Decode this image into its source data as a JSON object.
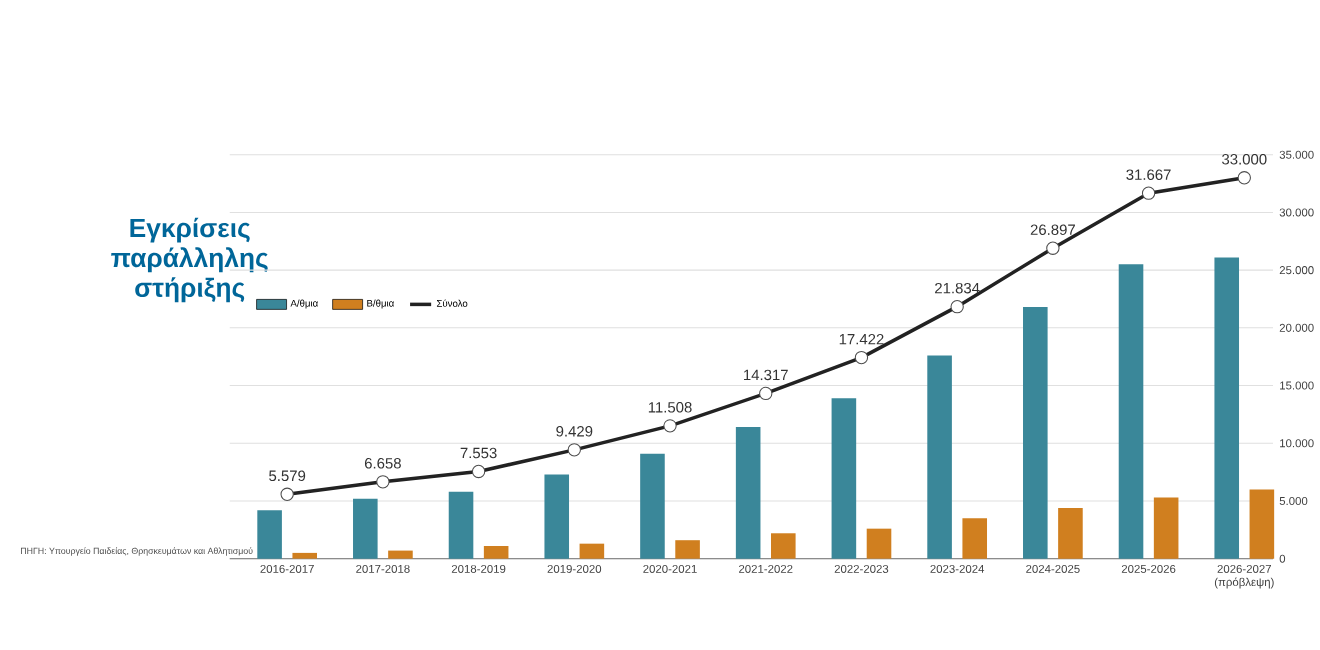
{
  "chart_data": {
    "type": "bar",
    "title": "Εγκρίσεις παράλληλης στήριξης",
    "categories": [
      "2016-2017",
      "2017-2018",
      "2018-2019",
      "2019-2020",
      "2020-2021",
      "2021-2022",
      "2022-2023",
      "2023-2024",
      "2024-2025",
      "2025-2026",
      "2026-2027 (πρόβλεψη)"
    ],
    "series": [
      {
        "name": "Α/θμια",
        "color": "#3a8799",
        "values": [
          4200,
          5200,
          5800,
          7300,
          9100,
          11400,
          13900,
          17600,
          21800,
          25500,
          26100
        ]
      },
      {
        "name": "Β/θμια",
        "color": "#d07f1f",
        "values": [
          500,
          700,
          1100,
          1300,
          1600,
          2200,
          2600,
          3500,
          4400,
          5300,
          6000
        ]
      },
      {
        "name": "Σύνολο",
        "type": "line",
        "color": "#222222",
        "marker": "circle",
        "values": [
          5579,
          6658,
          7553,
          9429,
          11508,
          14317,
          17422,
          21834,
          26897,
          31667,
          33000
        ],
        "value_labels": [
          "5.579",
          "6.658",
          "7.553",
          "9.429",
          "11.508",
          "14.317",
          "17.422",
          "21.834",
          "26.897",
          "31.667",
          "33.000"
        ]
      }
    ],
    "ylim": [
      0,
      35000
    ],
    "yticks": [
      0,
      {
        "value": 5000,
        "label": "5.000"
      },
      {
        "value": 10000,
        "label": "10.000"
      },
      {
        "value": 15000,
        "label": "15.000"
      },
      {
        "value": 20000,
        "label": "20.000"
      },
      {
        "value": 25000,
        "label": "25.000"
      },
      {
        "value": 30000,
        "label": "30.000"
      },
      {
        "value": 35000,
        "label": "35.000"
      }
    ],
    "grid": "y",
    "legend": "top left",
    "annotations": [
      "ΠΗΓΗ: Υπουργείο Παιδείας, Θρησκευμάτων και Αθλητισμού"
    ]
  }
}
